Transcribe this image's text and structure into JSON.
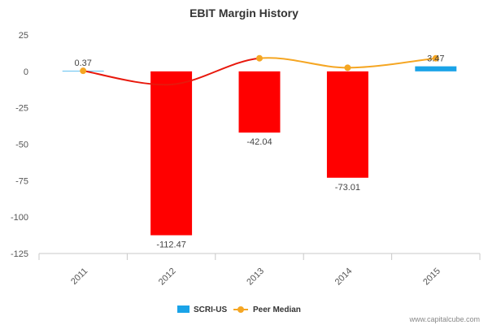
{
  "chart_data": {
    "type": "bar",
    "title": "EBIT Margin History",
    "xlabel": "",
    "ylabel": "",
    "categories": [
      "2011",
      "2012",
      "2013",
      "2014",
      "2015"
    ],
    "ylim": [
      -125,
      25
    ],
    "yticks": [
      25,
      0,
      -25,
      -50,
      -75,
      -100,
      -125
    ],
    "grid": false,
    "legend_position": "bottom-center",
    "series": [
      {
        "name": "SCRI-US",
        "type": "bar",
        "values": [
          0.37,
          -112.47,
          -42.04,
          -73.01,
          3.47
        ],
        "labels": [
          "0.37",
          "-112.47",
          "-42.04",
          "-73.01",
          "3.47"
        ],
        "negative_color": "#ff0000",
        "positive_color": "#1aa3e8"
      },
      {
        "name": "Peer Median",
        "type": "line",
        "values": [
          0.37,
          -9.0,
          9.0,
          2.5,
          9.0
        ],
        "color": "#f5a623",
        "below_zero_color": "#e8180c"
      }
    ],
    "credit": "www.capitalcube.com"
  }
}
